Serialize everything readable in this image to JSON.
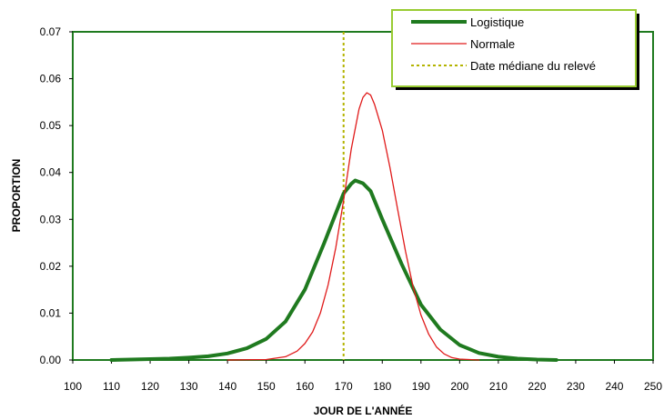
{
  "chart_data": {
    "type": "line",
    "title": "",
    "xlabel": "JOUR DE L'ANNÉE",
    "ylabel": "PROPORTION",
    "xlim": [
      100,
      250
    ],
    "ylim": [
      0,
      0.07
    ],
    "x_ticks": [
      "100",
      "110",
      "120",
      "130",
      "140",
      "150",
      "160",
      "170",
      "180",
      "190",
      "200",
      "210",
      "220",
      "230",
      "240",
      "250"
    ],
    "y_ticks": [
      "0.00",
      "0.01",
      "0.02",
      "0.03",
      "0.04",
      "0.05",
      "0.06",
      "0.07"
    ],
    "grid": false,
    "legend_position": "top-right",
    "reference_line": {
      "name": "Date médiane du relevé",
      "x": 170,
      "color": "#b3b300",
      "style": "dotted"
    },
    "series": [
      {
        "name": "Logistique",
        "color": "#1f7a1f",
        "style": "thick",
        "x": [
          110,
          115,
          120,
          125,
          130,
          135,
          140,
          145,
          150,
          155,
          160,
          165,
          170,
          172,
          173,
          175,
          177,
          180,
          185,
          190,
          195,
          200,
          205,
          210,
          215,
          220,
          225
        ],
        "values": [
          0.0,
          0.0001,
          0.0002,
          0.0003,
          0.0005,
          0.0008,
          0.0014,
          0.0025,
          0.0045,
          0.0082,
          0.015,
          0.025,
          0.0355,
          0.0376,
          0.0383,
          0.0377,
          0.036,
          0.03,
          0.0205,
          0.0118,
          0.0065,
          0.0032,
          0.0015,
          0.0007,
          0.0003,
          0.0001,
          0.0
        ]
      },
      {
        "name": "Normale",
        "color": "#e01a1a",
        "style": "thin",
        "x": [
          140,
          150,
          155,
          158,
          160,
          162,
          164,
          166,
          168,
          170,
          172,
          174,
          175,
          176,
          177,
          178,
          180,
          182,
          184,
          186,
          188,
          190,
          192,
          194,
          196,
          198,
          200,
          205
        ],
        "values": [
          0.0,
          0.0001,
          0.0007,
          0.0019,
          0.0035,
          0.006,
          0.01,
          0.016,
          0.024,
          0.034,
          0.045,
          0.0535,
          0.056,
          0.057,
          0.0565,
          0.0545,
          0.049,
          0.041,
          0.032,
          0.0232,
          0.0155,
          0.0096,
          0.0055,
          0.0028,
          0.0013,
          0.0005,
          0.0002,
          0.0
        ]
      }
    ]
  }
}
